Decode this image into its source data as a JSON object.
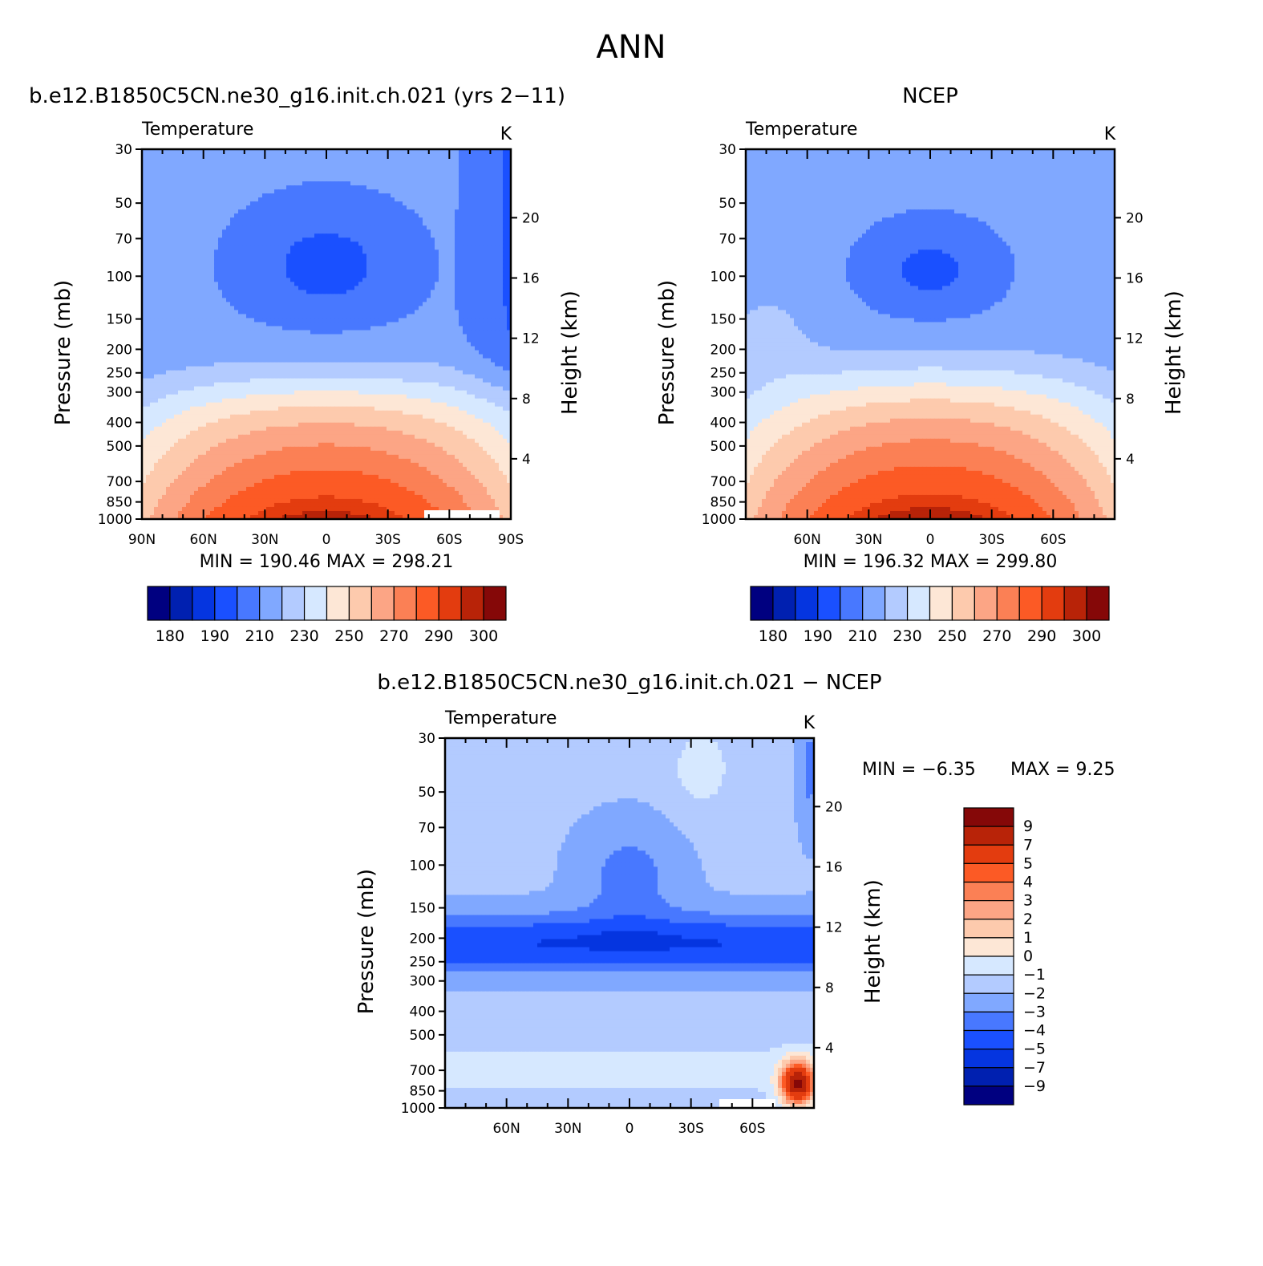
{
  "figure_title": "ANN",
  "colors": {
    "abs_scale": [
      "#000080",
      "#0020b0",
      "#0535e0",
      "#1a50ff",
      "#4878ff",
      "#80a8ff",
      "#b3cbff",
      "#d6e8ff",
      "#fde7d6",
      "#fdcaad",
      "#fca585",
      "#fb8055",
      "#fc5a25",
      "#e33c0f",
      "#b82308",
      "#850808"
    ],
    "diff_scale": [
      "#000080",
      "#0020b0",
      "#0535e0",
      "#1a50ff",
      "#4878ff",
      "#80a8ff",
      "#b3cbff",
      "#d6e8ff",
      "#fde7d6",
      "#fdcaad",
      "#fca585",
      "#fb8055",
      "#fc5a25",
      "#e33c0f",
      "#b82308",
      "#850808"
    ]
  },
  "chart_data": [
    {
      "type": "heatmap",
      "title": "b.e12.B1850C5CN.ne30_g16.init.ch.021 (yrs 2−11)",
      "left_label": "Temperature",
      "unit": "K",
      "ylabel": "Pressure (mb)",
      "ylabel_right": "Height (km)",
      "y_ticks": [
        30,
        50,
        70,
        100,
        150,
        200,
        250,
        300,
        400,
        500,
        700,
        850,
        1000
      ],
      "y_right_ticks": [
        20,
        16,
        12,
        8,
        4
      ],
      "x_tick_labels": [
        "90N",
        "60N",
        "30N",
        "0",
        "30S",
        "60S",
        "90S"
      ],
      "x_ticks": [
        -90,
        -60,
        -30,
        0,
        30,
        60,
        90
      ],
      "xlim": [
        -90,
        90
      ],
      "stats": "MIN = 190.46 MAX = 298.21",
      "legend_labels": [
        "180",
        "190",
        "210",
        "230",
        "250",
        "270",
        "290",
        "300"
      ],
      "field": "model"
    },
    {
      "type": "heatmap",
      "title": "NCEP",
      "left_label": "Temperature",
      "unit": "K",
      "ylabel": "Pressure (mb)",
      "ylabel_right": "Height (km)",
      "y_ticks": [
        30,
        50,
        70,
        100,
        150,
        200,
        250,
        300,
        400,
        500,
        700,
        850,
        1000
      ],
      "y_right_ticks": [
        20,
        16,
        12,
        8,
        4
      ],
      "x_tick_labels": [
        "60N",
        "30N",
        "0",
        "30S",
        "60S"
      ],
      "x_ticks": [
        -60,
        -30,
        0,
        30,
        60
      ],
      "xlim": [
        -90,
        90
      ],
      "stats": "MIN = 196.32 MAX = 299.80",
      "legend_labels": [
        "180",
        "190",
        "210",
        "230",
        "250",
        "270",
        "290",
        "300"
      ],
      "field": "obs"
    },
    {
      "type": "heatmap",
      "title": "b.e12.B1850C5CN.ne30_g16.init.ch.021 − NCEP",
      "left_label": "Temperature",
      "unit": "K",
      "ylabel": "Pressure (mb)",
      "ylabel_right": "Height (km)",
      "y_ticks": [
        30,
        50,
        70,
        100,
        150,
        200,
        250,
        300,
        400,
        500,
        700,
        850,
        1000
      ],
      "y_right_ticks": [
        20,
        16,
        12,
        8,
        4
      ],
      "x_tick_labels": [
        "60N",
        "30N",
        "0",
        "30S",
        "60S"
      ],
      "x_ticks": [
        -60,
        -30,
        0,
        30,
        60
      ],
      "xlim": [
        -90,
        90
      ],
      "stats_min": "MIN = −6.35",
      "stats_max": "MAX = 9.25",
      "legend_labels": [
        "9",
        "7",
        "5",
        "4",
        "3",
        "2",
        "1",
        "0",
        "−1",
        "−2",
        "−3",
        "−4",
        "−5",
        "−7",
        "−9"
      ],
      "field": "diff"
    }
  ]
}
